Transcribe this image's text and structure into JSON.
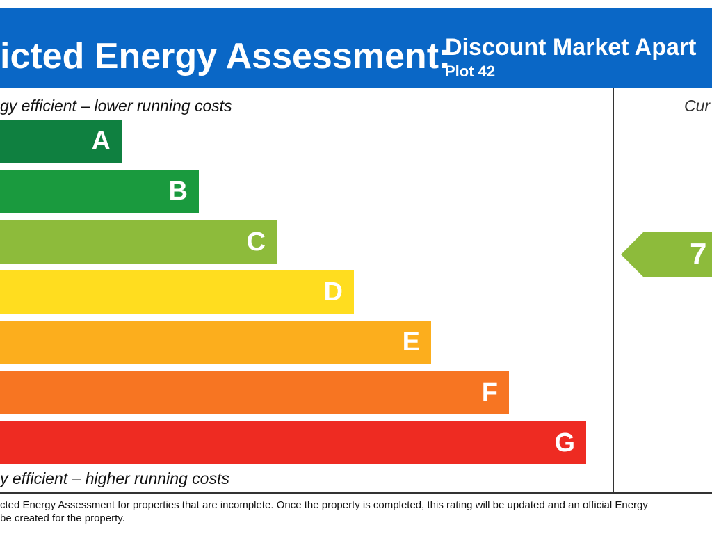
{
  "header": {
    "title": "icted Energy Assessment:",
    "property": "Discount Market Apart",
    "plot": "Plot 42"
  },
  "captions": {
    "top": "gy efficient – lower running costs",
    "bottom": "y efficient – higher running costs",
    "current_column": "Cur"
  },
  "chart_data": {
    "type": "bar",
    "title": "Predicted Energy Assessment",
    "categories": [
      "A",
      "B",
      "C",
      "D",
      "E",
      "F",
      "G"
    ],
    "band_order": [
      1,
      2,
      3,
      4,
      5,
      6,
      7
    ],
    "colors": [
      "#0f8040",
      "#1a9a3e",
      "#8dbb3b",
      "#ffdd1f",
      "#fcae1d",
      "#f77522",
      "#ee2b22"
    ],
    "current_rating": {
      "value": "7",
      "band": "C",
      "color": "#8dbb3b"
    }
  },
  "footnote": {
    "line1": "cted Energy Assessment for properties that are incomplete. Once the property is completed, this rating will be updated and an official Energy",
    "line2": "be created for the property."
  }
}
